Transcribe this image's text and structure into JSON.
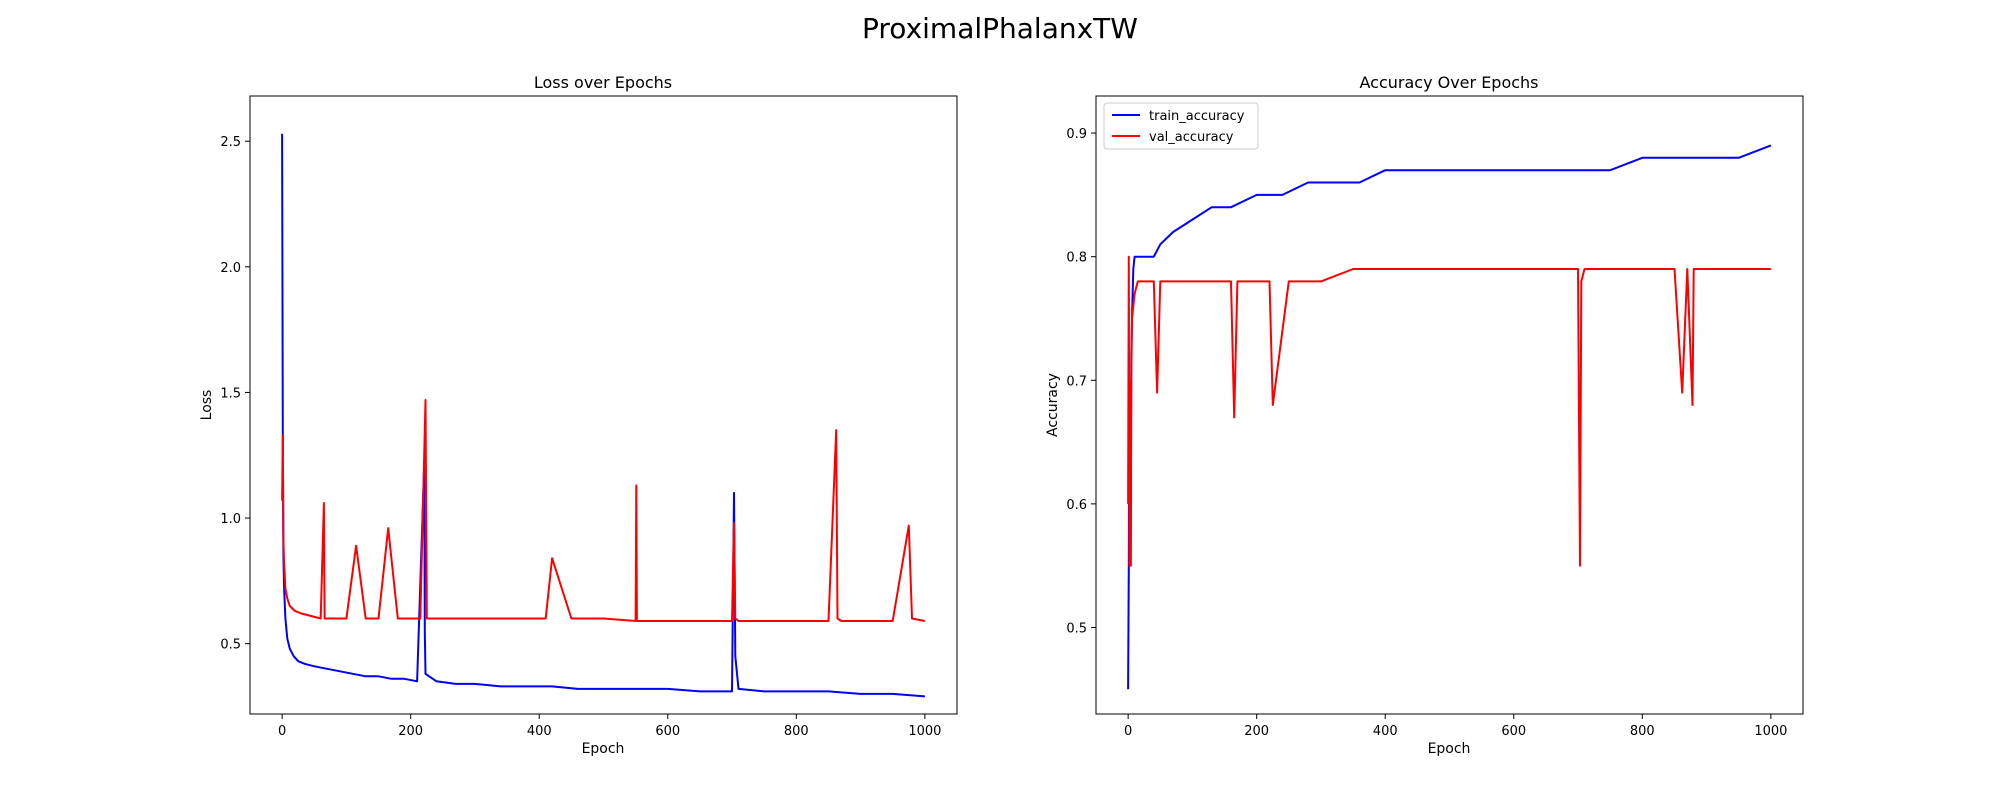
{
  "figure": {
    "suptitle": "ProximalPhalanxTW"
  },
  "chart_data": [
    {
      "type": "line",
      "title": "Loss over Epochs",
      "xlabel": "Epoch",
      "ylabel": "Loss",
      "xlim": [
        -50,
        1050
      ],
      "ylim": [
        0.22,
        2.68
      ],
      "xticks": [
        0,
        200,
        400,
        600,
        800,
        1000
      ],
      "yticks": [
        0.5,
        1.0,
        1.5,
        2.0,
        2.5
      ],
      "grid": false,
      "legend": false,
      "series": [
        {
          "color": "#0000ff",
          "kind": "train_loss",
          "x": [
            0,
            1,
            2,
            3,
            5,
            8,
            12,
            18,
            25,
            35,
            50,
            70,
            90,
            110,
            130,
            150,
            170,
            190,
            210,
            221,
            222,
            223,
            240,
            270,
            300,
            340,
            380,
            420,
            460,
            500,
            550,
            600,
            650,
            700,
            703,
            705,
            710,
            750,
            800,
            850,
            900,
            950,
            1000
          ],
          "y": [
            2.53,
            1.34,
            0.85,
            0.72,
            0.6,
            0.52,
            0.48,
            0.45,
            0.43,
            0.42,
            0.41,
            0.4,
            0.39,
            0.38,
            0.37,
            0.37,
            0.36,
            0.36,
            0.35,
            1.21,
            0.55,
            0.38,
            0.35,
            0.34,
            0.34,
            0.33,
            0.33,
            0.33,
            0.32,
            0.32,
            0.32,
            0.32,
            0.31,
            0.31,
            1.1,
            0.45,
            0.32,
            0.31,
            0.31,
            0.31,
            0.3,
            0.3,
            0.29
          ]
        },
        {
          "color": "#ff0000",
          "kind": "val_loss",
          "x": [
            0,
            1,
            2,
            3,
            5,
            8,
            12,
            20,
            30,
            45,
            60,
            65,
            66,
            80,
            100,
            115,
            130,
            150,
            165,
            180,
            200,
            215,
            223,
            225,
            240,
            260,
            300,
            350,
            410,
            420,
            450,
            500,
            550,
            551,
            552,
            600,
            650,
            700,
            703,
            705,
            710,
            750,
            800,
            850,
            862,
            864,
            870,
            900,
            950,
            975,
            980,
            1000
          ],
          "y": [
            1.07,
            1.33,
            0.91,
            0.82,
            0.72,
            0.68,
            0.65,
            0.63,
            0.62,
            0.61,
            0.6,
            1.06,
            0.6,
            0.6,
            0.6,
            0.89,
            0.6,
            0.6,
            0.96,
            0.6,
            0.6,
            0.6,
            1.47,
            0.6,
            0.6,
            0.6,
            0.6,
            0.6,
            0.6,
            0.84,
            0.6,
            0.6,
            0.59,
            1.13,
            0.59,
            0.59,
            0.59,
            0.59,
            0.98,
            0.6,
            0.59,
            0.59,
            0.59,
            0.59,
            1.35,
            0.6,
            0.59,
            0.59,
            0.59,
            0.97,
            0.6,
            0.59
          ]
        }
      ]
    },
    {
      "type": "line",
      "title": "Accuracy Over Epochs",
      "xlabel": "Epoch",
      "ylabel": "Accuracy",
      "xlim": [
        -50,
        1050
      ],
      "ylim": [
        0.43,
        0.93
      ],
      "xticks": [
        0,
        200,
        400,
        600,
        800,
        1000
      ],
      "yticks": [
        0.5,
        0.6,
        0.7,
        0.8,
        0.9
      ],
      "grid": false,
      "legend": true,
      "legend_loc": "upper left",
      "series": [
        {
          "name": "train_accuracy",
          "color": "#0000ff",
          "x": [
            0,
            1,
            2,
            3,
            4,
            5,
            6,
            8,
            10,
            15,
            20,
            30,
            40,
            50,
            70,
            100,
            130,
            160,
            200,
            240,
            280,
            320,
            360,
            400,
            450,
            500,
            550,
            600,
            650,
            700,
            750,
            800,
            850,
            900,
            950,
            1000
          ],
          "y": [
            0.45,
            0.55,
            0.7,
            0.6,
            0.55,
            0.72,
            0.75,
            0.79,
            0.8,
            0.8,
            0.8,
            0.8,
            0.8,
            0.81,
            0.82,
            0.83,
            0.84,
            0.84,
            0.85,
            0.85,
            0.86,
            0.86,
            0.86,
            0.87,
            0.87,
            0.87,
            0.87,
            0.87,
            0.87,
            0.87,
            0.87,
            0.88,
            0.88,
            0.88,
            0.88,
            0.89
          ]
        },
        {
          "name": "val_accuracy",
          "color": "#ff0000",
          "x": [
            0,
            1,
            2,
            3,
            4,
            5,
            6,
            8,
            10,
            15,
            20,
            30,
            40,
            45,
            50,
            60,
            80,
            100,
            130,
            160,
            165,
            170,
            200,
            220,
            225,
            250,
            300,
            350,
            400,
            450,
            500,
            550,
            600,
            650,
            700,
            703,
            705,
            710,
            750,
            800,
            850,
            862,
            870,
            878,
            880,
            900,
            930,
            980,
            1000
          ],
          "y": [
            0.6,
            0.8,
            0.55,
            0.7,
            0.55,
            0.7,
            0.75,
            0.76,
            0.77,
            0.78,
            0.78,
            0.78,
            0.78,
            0.69,
            0.78,
            0.78,
            0.78,
            0.78,
            0.78,
            0.78,
            0.67,
            0.78,
            0.78,
            0.78,
            0.68,
            0.78,
            0.78,
            0.79,
            0.79,
            0.79,
            0.79,
            0.79,
            0.79,
            0.79,
            0.79,
            0.55,
            0.78,
            0.79,
            0.79,
            0.79,
            0.79,
            0.69,
            0.79,
            0.68,
            0.79,
            0.79,
            0.79,
            0.79,
            0.79
          ]
        }
      ]
    }
  ]
}
